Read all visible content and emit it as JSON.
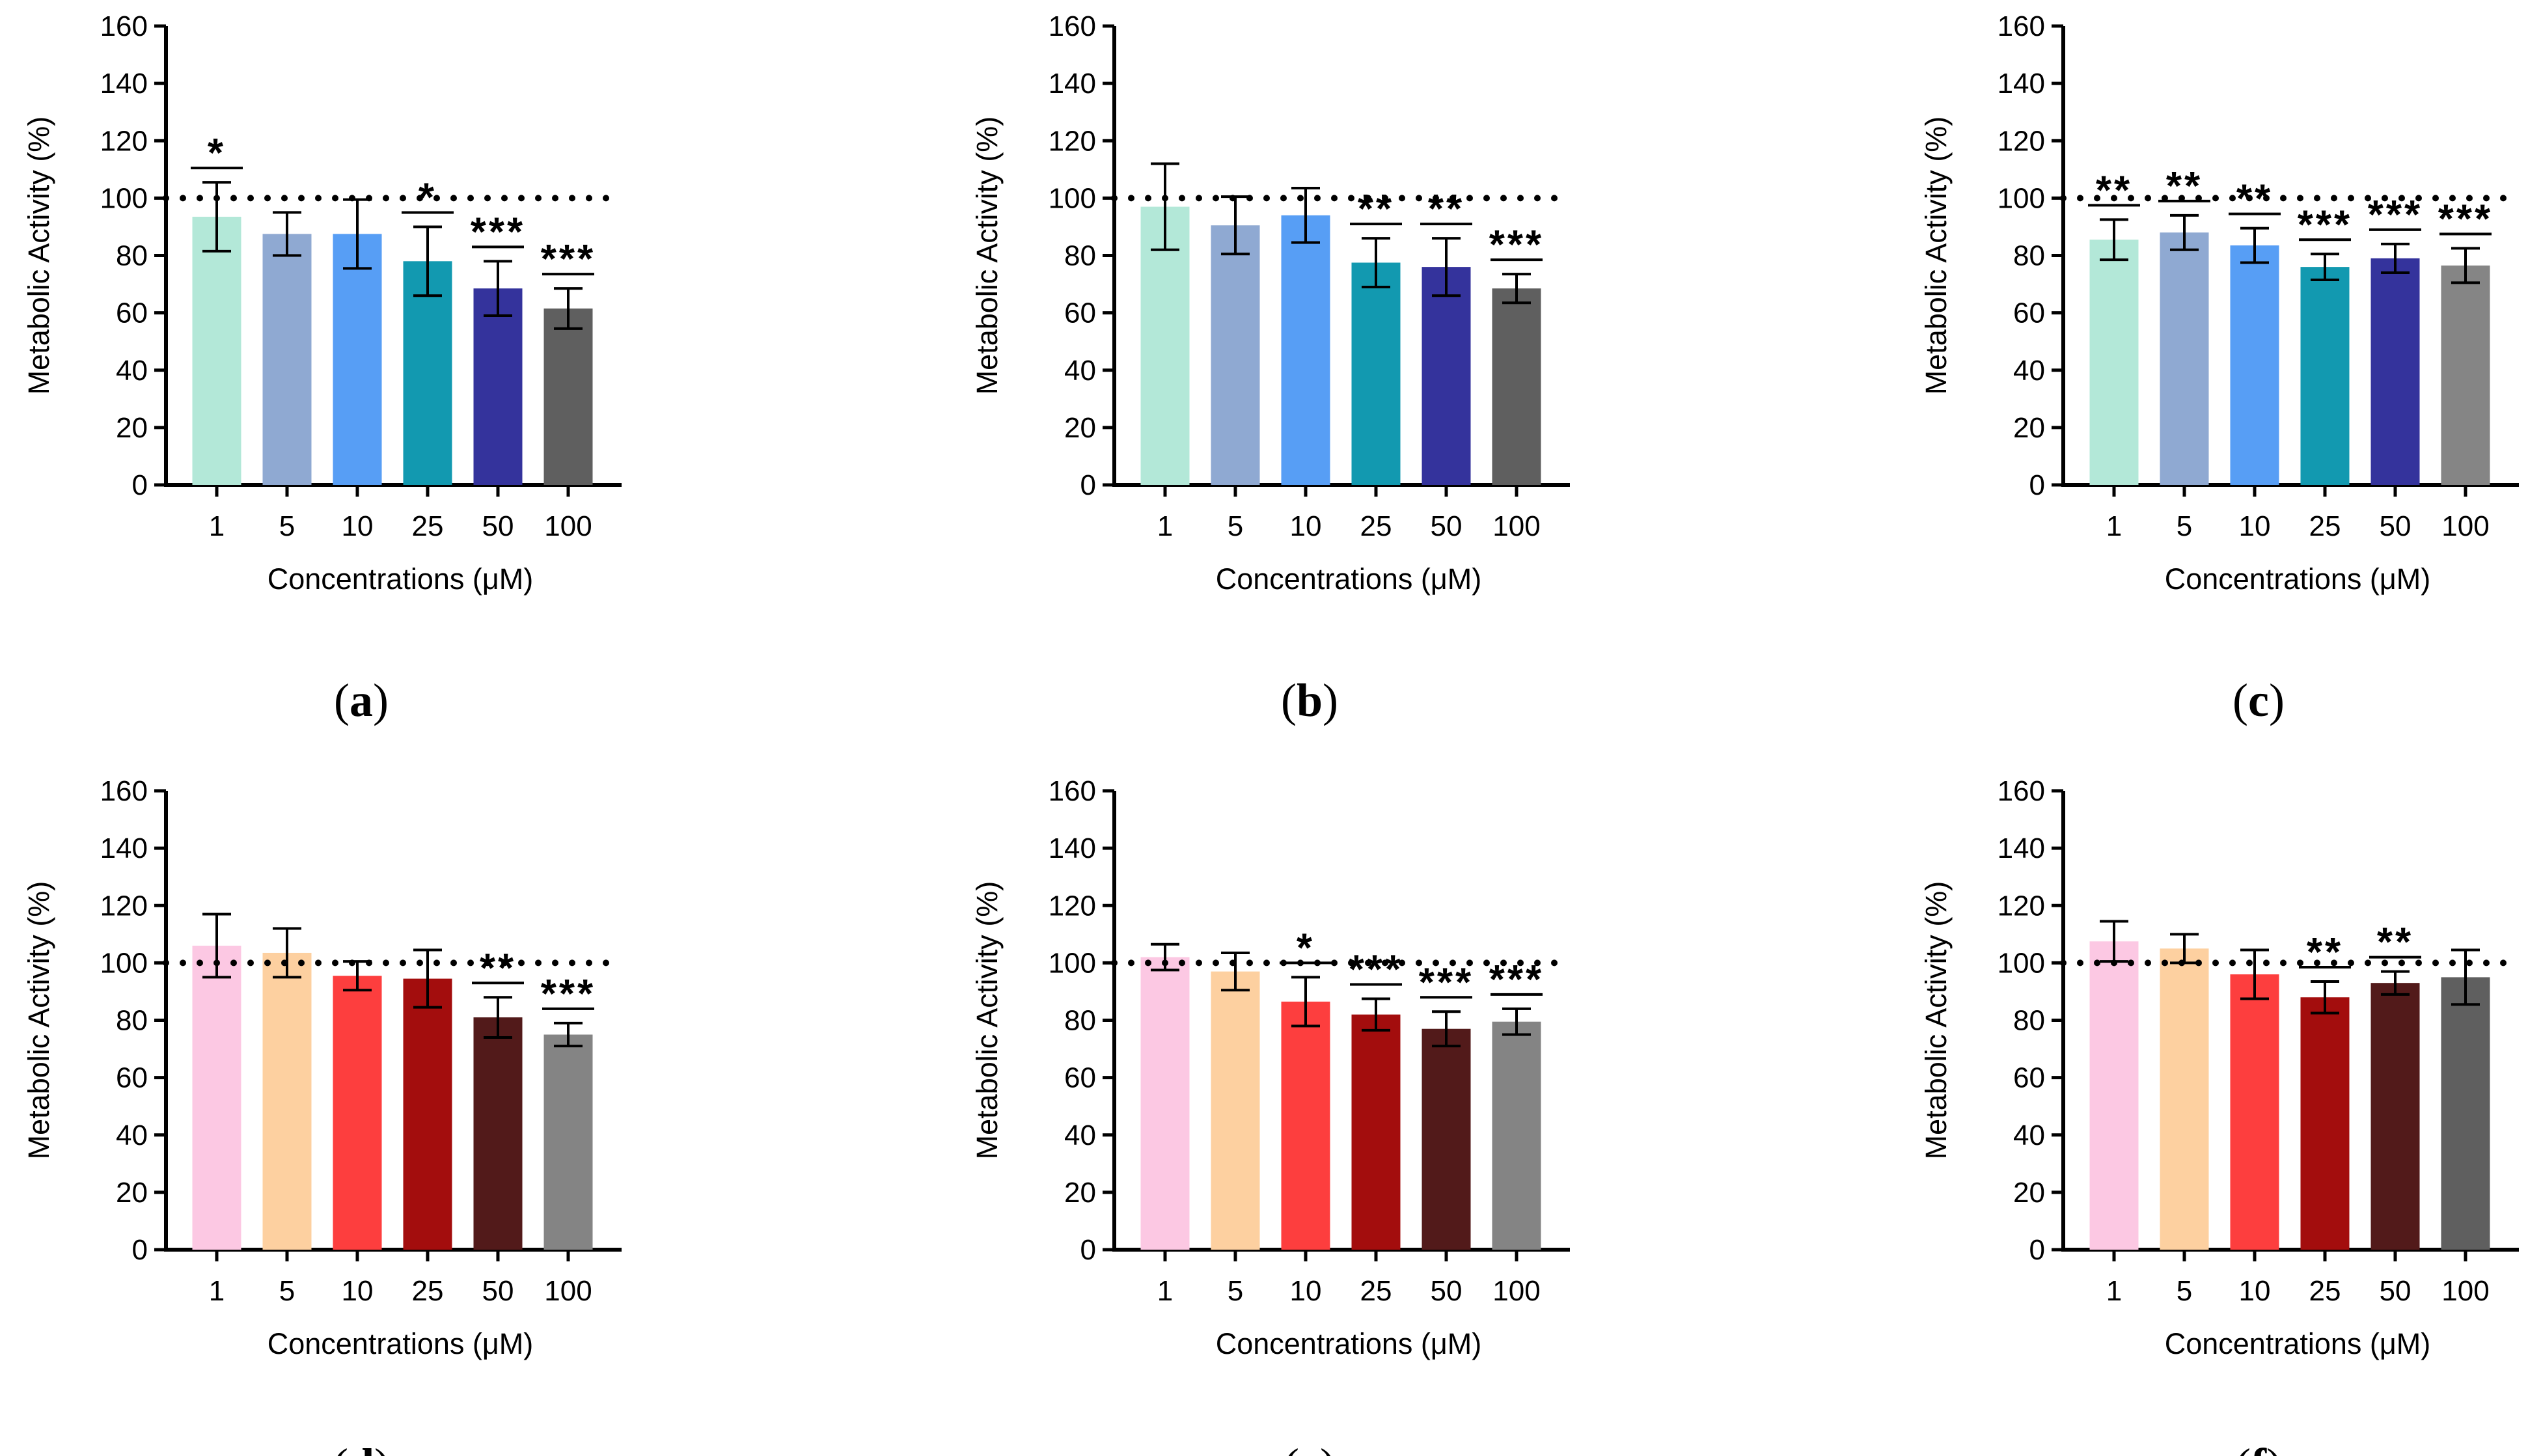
{
  "chart_data": [
    {
      "panel": "(a)",
      "type": "bar",
      "categories": [
        "1",
        "5",
        "10",
        "25",
        "50",
        "100"
      ],
      "values": [
        93.5,
        87.5,
        87.5,
        78,
        68.5,
        61.5
      ],
      "errors": [
        12,
        7.5,
        12,
        12,
        9.5,
        7
      ],
      "colors": [
        "#b3e8d8",
        "#8fa9d2",
        "#579ef5",
        "#1299b0",
        "#34339c",
        "#5f5f5f"
      ],
      "significance": [
        "*",
        "",
        "",
        "*",
        "***",
        "***"
      ],
      "reference_line": 100,
      "xlabel": "Concentrations (μM)",
      "ylabel": "Metabolic Activity (%)",
      "ylim": [
        0,
        160
      ],
      "yticks": [
        0,
        20,
        40,
        60,
        80,
        100,
        120,
        140,
        160
      ]
    },
    {
      "panel": "(b)",
      "type": "bar",
      "categories": [
        "1",
        "5",
        "10",
        "25",
        "50",
        "100"
      ],
      "values": [
        97,
        90.5,
        94,
        77.5,
        76,
        68.5
      ],
      "errors": [
        15,
        10,
        9.5,
        8.5,
        10,
        5
      ],
      "colors": [
        "#b3e8d8",
        "#8fa9d2",
        "#579ef5",
        "#1299b0",
        "#34339c",
        "#5f5f5f"
      ],
      "significance": [
        "",
        "",
        "",
        "**",
        "**",
        "***"
      ],
      "reference_line": 100,
      "xlabel": "Concentrations (μM)",
      "ylabel": "Metabolic Activity (%)",
      "ylim": [
        0,
        160
      ],
      "yticks": [
        0,
        20,
        40,
        60,
        80,
        100,
        120,
        140,
        160
      ]
    },
    {
      "panel": "(c)",
      "type": "bar",
      "categories": [
        "1",
        "5",
        "10",
        "25",
        "50",
        "100"
      ],
      "values": [
        85.5,
        88,
        83.5,
        76,
        79,
        76.5
      ],
      "errors": [
        7,
        6,
        6,
        4.5,
        5,
        6
      ],
      "colors": [
        "#b3e8d8",
        "#8fa9d2",
        "#579ef5",
        "#1299b0",
        "#34339c",
        "#858585"
      ],
      "significance": [
        "**",
        "**",
        "**",
        "***",
        "***",
        "***"
      ],
      "reference_line": 100,
      "xlabel": "Concentrations (μM)",
      "ylabel": "Metabolic Activity (%)",
      "ylim": [
        0,
        160
      ],
      "yticks": [
        0,
        20,
        40,
        60,
        80,
        100,
        120,
        140,
        160
      ]
    },
    {
      "panel": "(d)",
      "type": "bar",
      "categories": [
        "1",
        "5",
        "10",
        "25",
        "50",
        "100"
      ],
      "values": [
        106,
        103.5,
        95.5,
        94.5,
        81,
        75
      ],
      "errors": [
        11,
        8.5,
        5,
        10,
        7,
        4
      ],
      "colors": [
        "#fcc8e3",
        "#fdd0a0",
        "#fd3e3e",
        "#a30d0d",
        "#521a1a",
        "#848484"
      ],
      "significance": [
        "",
        "",
        "",
        "",
        "**",
        "***"
      ],
      "reference_line": 100,
      "xlabel": "Concentrations (μM)",
      "ylabel": "Metabolic Activity (%)",
      "ylim": [
        0,
        160
      ],
      "yticks": [
        0,
        20,
        40,
        60,
        80,
        100,
        120,
        140,
        160
      ]
    },
    {
      "panel": "(e)",
      "type": "bar",
      "categories": [
        "1",
        "5",
        "10",
        "25",
        "50",
        "100"
      ],
      "values": [
        102,
        97,
        86.5,
        82,
        77,
        79.5
      ],
      "errors": [
        4.5,
        6.5,
        8.5,
        5.5,
        6,
        4.5
      ],
      "colors": [
        "#fcc8e3",
        "#fdd0a0",
        "#fd3e3e",
        "#a30d0d",
        "#521a1a",
        "#848484"
      ],
      "significance": [
        "",
        "",
        "*",
        "***",
        "***",
        "***"
      ],
      "reference_line": 100,
      "xlabel": "Concentrations (μM)",
      "ylabel": "Metabolic Activity (%)",
      "ylim": [
        0,
        160
      ],
      "yticks": [
        0,
        20,
        40,
        60,
        80,
        100,
        120,
        140,
        160
      ]
    },
    {
      "panel": "(f)",
      "type": "bar",
      "categories": [
        "1",
        "5",
        "10",
        "25",
        "50",
        "100"
      ],
      "values": [
        107.5,
        105,
        96,
        88,
        93,
        95
      ],
      "errors": [
        7,
        5,
        8.5,
        5.5,
        4,
        9.5
      ],
      "colors": [
        "#fcc8e3",
        "#fdd0a0",
        "#fd3e3e",
        "#a30d0d",
        "#521a1a",
        "#5f5f5f"
      ],
      "significance": [
        "",
        "",
        "",
        "**",
        "**",
        ""
      ],
      "reference_line": 100,
      "xlabel": "Concentrations (μM)",
      "ylabel": "Metabolic Activity (%)",
      "ylim": [
        0,
        160
      ],
      "yticks": [
        0,
        20,
        40,
        60,
        80,
        100,
        120,
        140,
        160
      ]
    }
  ]
}
